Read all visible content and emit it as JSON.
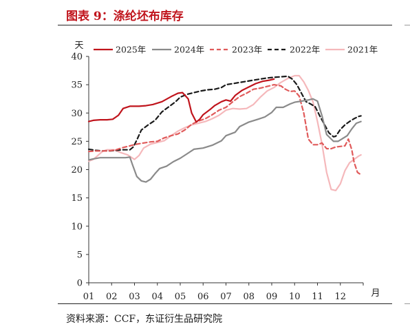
{
  "figure": {
    "title": "图表 9：涤纶坯布库存",
    "source": "资料来源：CCF，东证衍生品研究院"
  },
  "chart_data": {
    "type": "line",
    "ylabel": "天",
    "xlabel": "月",
    "ylim": [
      0,
      40
    ],
    "yticks": [
      0,
      5,
      10,
      15,
      20,
      25,
      30,
      35,
      40
    ],
    "xlim": [
      1,
      13
    ],
    "xticks": [
      "01",
      "02",
      "03",
      "04",
      "05",
      "06",
      "07",
      "08",
      "09",
      "10",
      "11",
      "12"
    ],
    "grid": false,
    "legend": "top",
    "series": [
      {
        "name": "2025年",
        "color": "#c0141c",
        "dash": "solid",
        "points": [
          [
            1.0,
            28.5
          ],
          [
            1.2,
            28.7
          ],
          [
            1.5,
            28.8
          ],
          [
            1.8,
            28.8
          ],
          [
            2.05,
            28.9
          ],
          [
            2.3,
            29.6
          ],
          [
            2.5,
            30.8
          ],
          [
            2.8,
            31.2
          ],
          [
            3.2,
            31.2
          ],
          [
            3.5,
            31.3
          ],
          [
            3.8,
            31.5
          ],
          [
            4.2,
            32.0
          ],
          [
            4.6,
            32.9
          ],
          [
            4.9,
            33.5
          ],
          [
            5.1,
            33.6
          ],
          [
            5.35,
            32.5
          ],
          [
            5.5,
            30.0
          ],
          [
            5.7,
            28.4
          ],
          [
            5.85,
            28.9
          ],
          [
            6.0,
            29.7
          ],
          [
            6.3,
            30.6
          ],
          [
            6.5,
            31.3
          ],
          [
            6.8,
            32.0
          ],
          [
            7.0,
            32.3
          ],
          [
            7.2,
            32.1
          ],
          [
            7.4,
            33.1
          ],
          [
            7.7,
            34.0
          ],
          [
            8.0,
            34.6
          ],
          [
            8.3,
            35.2
          ],
          [
            8.6,
            35.6
          ],
          [
            8.9,
            35.8
          ],
          [
            9.1,
            36.0
          ]
        ]
      },
      {
        "name": "2024年",
        "color": "#8a8a8a",
        "dash": "solid",
        "points": [
          [
            1.0,
            21.7
          ],
          [
            1.2,
            21.9
          ],
          [
            1.5,
            22.1
          ],
          [
            1.8,
            22.1
          ],
          [
            2.2,
            22.1
          ],
          [
            2.6,
            22.1
          ],
          [
            2.8,
            22.2
          ],
          [
            2.9,
            21.0
          ],
          [
            3.1,
            18.8
          ],
          [
            3.3,
            18.0
          ],
          [
            3.5,
            17.8
          ],
          [
            3.7,
            18.3
          ],
          [
            3.9,
            19.3
          ],
          [
            4.1,
            20.2
          ],
          [
            4.4,
            20.6
          ],
          [
            4.7,
            21.4
          ],
          [
            5.0,
            22.0
          ],
          [
            5.3,
            22.8
          ],
          [
            5.6,
            23.6
          ],
          [
            6.0,
            23.8
          ],
          [
            6.4,
            24.3
          ],
          [
            6.8,
            25.1
          ],
          [
            7.0,
            26.0
          ],
          [
            7.4,
            26.6
          ],
          [
            7.6,
            27.6
          ],
          [
            8.0,
            28.4
          ],
          [
            8.4,
            28.9
          ],
          [
            8.7,
            29.3
          ],
          [
            9.0,
            30.1
          ],
          [
            9.2,
            31.0
          ],
          [
            9.5,
            31.0
          ],
          [
            9.8,
            31.6
          ],
          [
            10.0,
            31.9
          ],
          [
            10.3,
            32.1
          ],
          [
            10.6,
            32.3
          ],
          [
            10.8,
            32.5
          ],
          [
            11.0,
            32.1
          ],
          [
            11.2,
            29.5
          ],
          [
            11.4,
            26.2
          ],
          [
            11.7,
            25.0
          ],
          [
            11.9,
            25.0
          ],
          [
            12.1,
            25.5
          ],
          [
            12.3,
            26.0
          ],
          [
            12.5,
            27.2
          ],
          [
            12.7,
            28.2
          ],
          [
            12.9,
            28.5
          ]
        ]
      },
      {
        "name": "2023年",
        "color": "#e05a5a",
        "dash": "dashed",
        "points": [
          [
            1.0,
            23.2
          ],
          [
            1.3,
            23.3
          ],
          [
            1.6,
            23.3
          ],
          [
            1.9,
            23.3
          ],
          [
            2.2,
            23.5
          ],
          [
            2.5,
            23.9
          ],
          [
            2.8,
            24.2
          ],
          [
            3.1,
            24.5
          ],
          [
            3.4,
            24.7
          ],
          [
            3.7,
            24.9
          ],
          [
            4.0,
            25.0
          ],
          [
            4.3,
            25.6
          ],
          [
            4.6,
            26.0
          ],
          [
            4.9,
            26.3
          ],
          [
            5.2,
            27.0
          ],
          [
            5.5,
            28.0
          ],
          [
            5.8,
            28.6
          ],
          [
            6.1,
            29.0
          ],
          [
            6.4,
            29.7
          ],
          [
            6.7,
            30.5
          ],
          [
            7.0,
            31.0
          ],
          [
            7.3,
            32.0
          ],
          [
            7.6,
            32.9
          ],
          [
            7.9,
            33.5
          ],
          [
            8.2,
            34.2
          ],
          [
            8.5,
            34.4
          ],
          [
            8.8,
            34.7
          ],
          [
            9.1,
            35.0
          ],
          [
            9.4,
            34.8
          ],
          [
            9.6,
            34.2
          ],
          [
            9.8,
            33.8
          ],
          [
            10.0,
            33.9
          ],
          [
            10.2,
            33.0
          ],
          [
            10.4,
            30.0
          ],
          [
            10.6,
            25.4
          ],
          [
            10.8,
            24.4
          ],
          [
            11.0,
            24.4
          ],
          [
            11.2,
            24.7
          ],
          [
            11.4,
            23.7
          ],
          [
            11.6,
            23.7
          ],
          [
            11.8,
            24.0
          ],
          [
            12.0,
            24.1
          ],
          [
            12.2,
            24.2
          ],
          [
            12.35,
            25.4
          ],
          [
            12.5,
            23.5
          ],
          [
            12.6,
            21.3
          ],
          [
            12.75,
            19.5
          ],
          [
            12.9,
            19.1
          ]
        ]
      },
      {
        "name": "2022年",
        "color": "#1a1a1a",
        "dash": "dashed",
        "points": [
          [
            1.0,
            23.6
          ],
          [
            1.3,
            23.4
          ],
          [
            1.6,
            23.3
          ],
          [
            1.9,
            23.3
          ],
          [
            2.2,
            23.4
          ],
          [
            2.5,
            23.5
          ],
          [
            2.8,
            23.5
          ],
          [
            2.95,
            24.0
          ],
          [
            3.1,
            25.2
          ],
          [
            3.3,
            27.0
          ],
          [
            3.6,
            27.9
          ],
          [
            3.9,
            28.7
          ],
          [
            4.2,
            30.2
          ],
          [
            4.5,
            31.1
          ],
          [
            4.8,
            32.0
          ],
          [
            5.0,
            32.8
          ],
          [
            5.3,
            33.3
          ],
          [
            5.6,
            33.6
          ],
          [
            5.9,
            33.9
          ],
          [
            6.2,
            34.1
          ],
          [
            6.5,
            34.2
          ],
          [
            6.8,
            34.5
          ],
          [
            7.0,
            35.0
          ],
          [
            7.3,
            35.2
          ],
          [
            7.6,
            35.4
          ],
          [
            7.9,
            35.6
          ],
          [
            8.2,
            35.8
          ],
          [
            8.5,
            36.0
          ],
          [
            8.8,
            36.2
          ],
          [
            9.1,
            36.3
          ],
          [
            9.4,
            36.4
          ],
          [
            9.7,
            36.5
          ],
          [
            9.9,
            36.0
          ],
          [
            10.1,
            35.0
          ],
          [
            10.3,
            33.5
          ],
          [
            10.5,
            32.0
          ],
          [
            10.7,
            31.6
          ],
          [
            10.9,
            31.1
          ],
          [
            11.1,
            29.5
          ],
          [
            11.3,
            28.0
          ],
          [
            11.5,
            26.5
          ],
          [
            11.7,
            25.8
          ],
          [
            11.8,
            25.9
          ],
          [
            12.0,
            27.1
          ],
          [
            12.2,
            27.9
          ],
          [
            12.4,
            28.5
          ],
          [
            12.6,
            29.0
          ],
          [
            12.8,
            29.4
          ],
          [
            12.9,
            29.5
          ]
        ]
      },
      {
        "name": "2021年",
        "color": "#f5b8bb",
        "dash": "solid",
        "points": [
          [
            1.0,
            21.5
          ],
          [
            1.2,
            21.8
          ],
          [
            1.4,
            22.5
          ],
          [
            1.6,
            23.2
          ],
          [
            1.8,
            23.5
          ],
          [
            2.1,
            23.5
          ],
          [
            2.4,
            23.0
          ],
          [
            2.7,
            22.6
          ],
          [
            3.0,
            21.8
          ],
          [
            3.2,
            22.5
          ],
          [
            3.4,
            23.8
          ],
          [
            3.7,
            24.5
          ],
          [
            4.0,
            24.8
          ],
          [
            4.3,
            25.1
          ],
          [
            4.6,
            26.0
          ],
          [
            4.9,
            26.8
          ],
          [
            5.2,
            27.4
          ],
          [
            5.5,
            27.9
          ],
          [
            5.8,
            28.2
          ],
          [
            6.1,
            28.5
          ],
          [
            6.4,
            29.0
          ],
          [
            6.7,
            29.6
          ],
          [
            7.0,
            30.5
          ],
          [
            7.3,
            30.8
          ],
          [
            7.6,
            30.7
          ],
          [
            7.9,
            30.8
          ],
          [
            8.2,
            31.5
          ],
          [
            8.5,
            32.8
          ],
          [
            8.8,
            33.9
          ],
          [
            9.1,
            34.5
          ],
          [
            9.4,
            35.4
          ],
          [
            9.7,
            36.1
          ],
          [
            10.0,
            36.6
          ],
          [
            10.2,
            36.6
          ],
          [
            10.4,
            35.5
          ],
          [
            10.6,
            34.0
          ],
          [
            10.8,
            32.0
          ],
          [
            11.0,
            28.5
          ],
          [
            11.2,
            24.5
          ],
          [
            11.4,
            19.5
          ],
          [
            11.6,
            16.5
          ],
          [
            11.8,
            16.3
          ],
          [
            12.0,
            17.5
          ],
          [
            12.2,
            19.8
          ],
          [
            12.4,
            21.2
          ],
          [
            12.6,
            21.8
          ],
          [
            12.8,
            22.4
          ],
          [
            12.9,
            22.6
          ]
        ]
      }
    ]
  }
}
